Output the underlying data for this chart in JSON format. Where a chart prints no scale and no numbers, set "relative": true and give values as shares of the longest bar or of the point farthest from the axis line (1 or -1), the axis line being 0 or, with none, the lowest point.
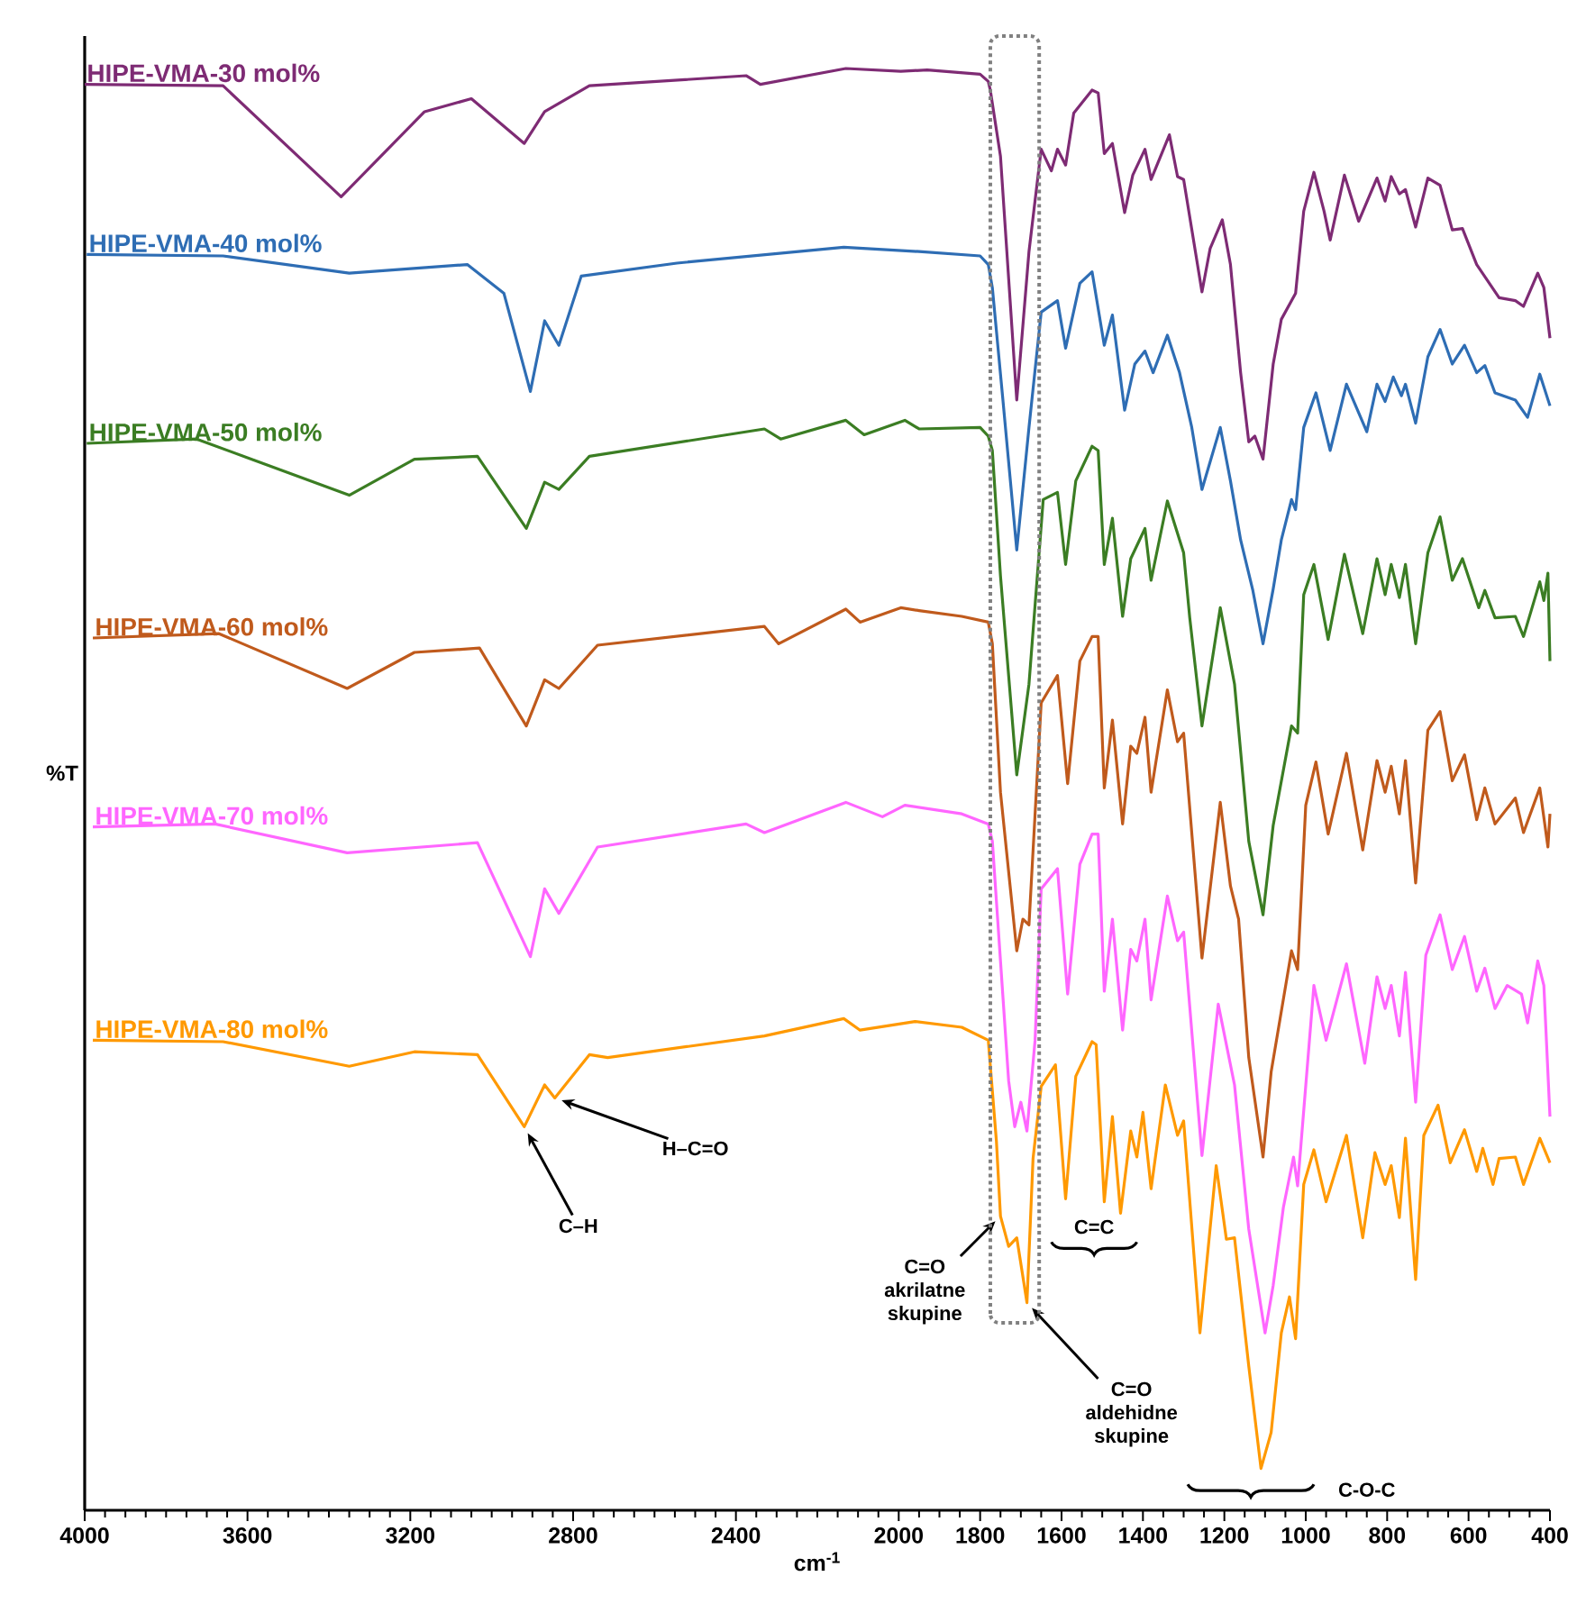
{
  "chart_data": {
    "type": "line",
    "relative": true,
    "xlabel": "cm$^{-1}$",
    "ylabel": "%T",
    "xlim": [
      4000,
      400
    ],
    "xticks": [
      4000,
      3600,
      3200,
      2800,
      2400,
      2000,
      1800,
      1600,
      1400,
      1200,
      1000,
      800,
      600,
      400
    ],
    "legend": false,
    "grid": false,
    "marker": "none",
    "line_style": "solid",
    "series": [
      {
        "name": "HIPE-VMA-30 mol%",
        "color": "#7e2b74",
        "x": [
          4000,
          3660,
          3370,
          3165,
          3050,
          2920,
          2870,
          2760,
          2375,
          2340,
          2130,
          1995,
          1930,
          1800,
          1780,
          1775,
          1750,
          1710,
          1680,
          1650,
          1625,
          1610,
          1590,
          1570,
          1525,
          1510,
          1495,
          1475,
          1445,
          1425,
          1395,
          1380,
          1335,
          1315,
          1300,
          1255,
          1235,
          1205,
          1185,
          1160,
          1140,
          1125,
          1105,
          1080,
          1060,
          1025,
          1005,
          980,
          955,
          940,
          905,
          870,
          825,
          805,
          790,
          770,
          755,
          730,
          700,
          670,
          640,
          615,
          580,
          525,
          485,
          465,
          430,
          415,
          400
        ],
        "values": [
          0.989,
          0.988,
          0.911,
          0.97,
          0.979,
          0.948,
          0.97,
          0.988,
          0.995,
          0.989,
          1.0,
          0.998,
          0.999,
          0.996,
          0.991,
          0.985,
          0.939,
          0.77,
          0.873,
          0.944,
          0.929,
          0.944,
          0.933,
          0.969,
          0.985,
          0.983,
          0.941,
          0.948,
          0.9,
          0.926,
          0.944,
          0.923,
          0.954,
          0.925,
          0.923,
          0.845,
          0.875,
          0.895,
          0.864,
          0.789,
          0.741,
          0.745,
          0.729,
          0.795,
          0.826,
          0.844,
          0.901,
          0.928,
          0.901,
          0.881,
          0.926,
          0.894,
          0.924,
          0.908,
          0.925,
          0.913,
          0.916,
          0.89,
          0.924,
          0.919,
          0.888,
          0.889,
          0.864,
          0.841,
          0.839,
          0.835,
          0.858,
          0.848,
          0.813
        ]
      },
      {
        "name": "HIPE-VMA-40 mol%",
        "color": "#2e6db4",
        "x": [
          3995,
          3660,
          3350,
          3060,
          2970,
          2905,
          2870,
          2835,
          2780,
          2545,
          2135,
          1950,
          1800,
          1780,
          1770,
          1745,
          1710,
          1680,
          1650,
          1610,
          1590,
          1555,
          1525,
          1495,
          1475,
          1445,
          1420,
          1395,
          1375,
          1340,
          1310,
          1280,
          1255,
          1210,
          1185,
          1160,
          1130,
          1105,
          1080,
          1060,
          1035,
          1025,
          1005,
          975,
          940,
          900,
          850,
          825,
          805,
          785,
          765,
          755,
          730,
          700,
          670,
          640,
          610,
          580,
          560,
          535,
          485,
          455,
          425,
          400
        ],
        "values": [
          0.871,
          0.87,
          0.858,
          0.864,
          0.844,
          0.776,
          0.825,
          0.808,
          0.856,
          0.865,
          0.876,
          0.873,
          0.87,
          0.864,
          0.848,
          0.773,
          0.666,
          0.751,
          0.831,
          0.839,
          0.806,
          0.851,
          0.859,
          0.808,
          0.829,
          0.763,
          0.795,
          0.804,
          0.789,
          0.815,
          0.789,
          0.751,
          0.708,
          0.751,
          0.714,
          0.673,
          0.638,
          0.601,
          0.639,
          0.673,
          0.701,
          0.694,
          0.751,
          0.775,
          0.735,
          0.781,
          0.748,
          0.781,
          0.769,
          0.786,
          0.773,
          0.781,
          0.754,
          0.8,
          0.819,
          0.795,
          0.808,
          0.789,
          0.794,
          0.775,
          0.77,
          0.758,
          0.788,
          0.766
        ]
      },
      {
        "name": "HIPE-VMA-50 mol%",
        "color": "#3b7d23",
        "x": [
          3995,
          3725,
          3350,
          3190,
          3035,
          2915,
          2870,
          2835,
          2760,
          2330,
          2290,
          2130,
          2085,
          1985,
          1950,
          1800,
          1780,
          1770,
          1750,
          1710,
          1680,
          1645,
          1610,
          1590,
          1565,
          1525,
          1510,
          1495,
          1475,
          1450,
          1430,
          1395,
          1380,
          1340,
          1300,
          1285,
          1255,
          1210,
          1175,
          1140,
          1105,
          1080,
          1035,
          1020,
          1005,
          980,
          945,
          905,
          860,
          825,
          805,
          790,
          770,
          755,
          730,
          700,
          670,
          640,
          615,
          575,
          560,
          535,
          485,
          465,
          425,
          415,
          405,
          400
        ],
        "values": [
          0.74,
          0.743,
          0.704,
          0.729,
          0.731,
          0.681,
          0.713,
          0.708,
          0.731,
          0.75,
          0.743,
          0.756,
          0.746,
          0.756,
          0.75,
          0.751,
          0.745,
          0.735,
          0.648,
          0.51,
          0.573,
          0.701,
          0.706,
          0.656,
          0.714,
          0.738,
          0.735,
          0.656,
          0.688,
          0.62,
          0.66,
          0.681,
          0.645,
          0.7,
          0.664,
          0.619,
          0.544,
          0.626,
          0.573,
          0.464,
          0.413,
          0.475,
          0.544,
          0.539,
          0.635,
          0.656,
          0.604,
          0.663,
          0.608,
          0.66,
          0.635,
          0.656,
          0.633,
          0.656,
          0.601,
          0.664,
          0.689,
          0.645,
          0.66,
          0.626,
          0.638,
          0.619,
          0.62,
          0.606,
          0.644,
          0.631,
          0.65,
          0.589
        ]
      },
      {
        "name": "HIPE-VMA-60 mol%",
        "color": "#c05a1c",
        "x": [
          3980,
          3670,
          3355,
          3190,
          3030,
          2915,
          2870,
          2835,
          2740,
          2330,
          2295,
          2130,
          2095,
          1995,
          1950,
          1845,
          1780,
          1770,
          1750,
          1710,
          1695,
          1680,
          1650,
          1610,
          1585,
          1555,
          1525,
          1510,
          1495,
          1475,
          1450,
          1430,
          1415,
          1395,
          1380,
          1340,
          1315,
          1300,
          1255,
          1210,
          1185,
          1165,
          1140,
          1105,
          1085,
          1035,
          1020,
          1000,
          975,
          945,
          900,
          860,
          825,
          805,
          790,
          770,
          755,
          730,
          700,
          670,
          640,
          610,
          580,
          560,
          535,
          485,
          465,
          425,
          405,
          400
        ],
        "values": [
          0.605,
          0.608,
          0.57,
          0.595,
          0.598,
          0.544,
          0.576,
          0.57,
          0.6,
          0.613,
          0.601,
          0.625,
          0.616,
          0.626,
          0.624,
          0.62,
          0.616,
          0.601,
          0.498,
          0.388,
          0.41,
          0.406,
          0.56,
          0.579,
          0.504,
          0.589,
          0.606,
          0.606,
          0.501,
          0.548,
          0.476,
          0.53,
          0.525,
          0.55,
          0.498,
          0.569,
          0.533,
          0.539,
          0.383,
          0.491,
          0.433,
          0.41,
          0.314,
          0.245,
          0.304,
          0.388,
          0.375,
          0.489,
          0.519,
          0.469,
          0.525,
          0.458,
          0.52,
          0.498,
          0.516,
          0.483,
          0.52,
          0.435,
          0.541,
          0.554,
          0.506,
          0.524,
          0.479,
          0.501,
          0.476,
          0.494,
          0.47,
          0.501,
          0.46,
          0.483
        ]
      },
      {
        "name": "HIPE-VMA-70 mol%",
        "color": "#ff66ff",
        "x": [
          3980,
          3680,
          3355,
          3035,
          2905,
          2870,
          2835,
          2740,
          2375,
          2330,
          2130,
          2040,
          1985,
          1845,
          1780,
          1770,
          1750,
          1730,
          1715,
          1700,
          1685,
          1665,
          1650,
          1610,
          1585,
          1555,
          1525,
          1510,
          1495,
          1475,
          1450,
          1430,
          1415,
          1395,
          1380,
          1340,
          1315,
          1300,
          1255,
          1215,
          1175,
          1140,
          1100,
          1080,
          1055,
          1030,
          1020,
          980,
          950,
          900,
          855,
          825,
          805,
          790,
          770,
          755,
          730,
          705,
          670,
          640,
          610,
          580,
          560,
          535,
          505,
          470,
          455,
          430,
          415,
          400
        ],
        "values": [
          0.474,
          0.476,
          0.456,
          0.463,
          0.384,
          0.431,
          0.414,
          0.46,
          0.476,
          0.47,
          0.491,
          0.481,
          0.489,
          0.483,
          0.476,
          0.464,
          0.381,
          0.298,
          0.266,
          0.283,
          0.263,
          0.326,
          0.431,
          0.445,
          0.358,
          0.448,
          0.469,
          0.469,
          0.36,
          0.41,
          0.333,
          0.389,
          0.381,
          0.41,
          0.354,
          0.426,
          0.395,
          0.401,
          0.246,
          0.351,
          0.295,
          0.195,
          0.123,
          0.156,
          0.21,
          0.245,
          0.225,
          0.364,
          0.326,
          0.379,
          0.31,
          0.37,
          0.348,
          0.364,
          0.329,
          0.373,
          0.283,
          0.385,
          0.413,
          0.375,
          0.398,
          0.36,
          0.376,
          0.348,
          0.364,
          0.358,
          0.338,
          0.381,
          0.364,
          0.273
        ]
      },
      {
        "name": "HIPE-VMA-80 mol%",
        "color": "#ff9900",
        "x": [
          3980,
          3660,
          3350,
          3190,
          3035,
          2920,
          2870,
          2845,
          2760,
          2715,
          2330,
          2135,
          2095,
          1960,
          1845,
          1780,
          1760,
          1750,
          1730,
          1710,
          1685,
          1670,
          1650,
          1615,
          1590,
          1565,
          1525,
          1515,
          1495,
          1475,
          1455,
          1430,
          1415,
          1400,
          1380,
          1345,
          1315,
          1300,
          1260,
          1220,
          1195,
          1175,
          1140,
          1110,
          1085,
          1060,
          1040,
          1025,
          1005,
          980,
          950,
          900,
          860,
          830,
          805,
          790,
          770,
          755,
          730,
          710,
          675,
          645,
          610,
          580,
          565,
          540,
          525,
          485,
          465,
          425,
          400
        ],
        "values": [
          0.326,
          0.325,
          0.308,
          0.318,
          0.316,
          0.266,
          0.295,
          0.286,
          0.316,
          0.314,
          0.329,
          0.341,
          0.333,
          0.339,
          0.335,
          0.326,
          0.256,
          0.204,
          0.183,
          0.189,
          0.144,
          0.244,
          0.294,
          0.309,
          0.216,
          0.301,
          0.325,
          0.323,
          0.214,
          0.273,
          0.206,
          0.263,
          0.245,
          0.276,
          0.223,
          0.295,
          0.26,
          0.27,
          0.123,
          0.239,
          0.188,
          0.189,
          0.1,
          0.029,
          0.054,
          0.123,
          0.148,
          0.119,
          0.226,
          0.25,
          0.214,
          0.26,
          0.189,
          0.248,
          0.226,
          0.239,
          0.203,
          0.258,
          0.16,
          0.26,
          0.281,
          0.241,
          0.264,
          0.235,
          0.251,
          0.226,
          0.244,
          0.245,
          0.226,
          0.258,
          0.241
        ]
      }
    ],
    "annotations": [
      {
        "text": "C–H",
        "x": 2920,
        "y": 0.266
      },
      {
        "text": "H–C=O",
        "x": 2845,
        "y": 0.286
      },
      {
        "text": "C=O akrilatne skupine",
        "x": 1750,
        "y": 0.204
      },
      {
        "text": "C=O aldehidne skupine",
        "x": 1685,
        "y": 0.144
      },
      "C=C",
      "C-O-C"
    ]
  }
}
